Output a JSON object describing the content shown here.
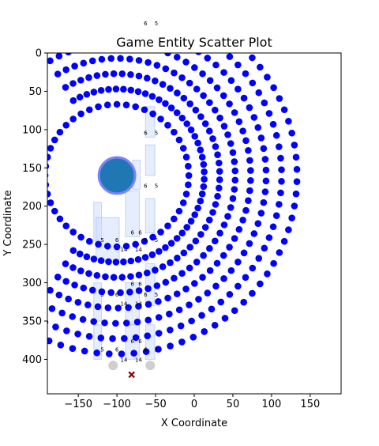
{
  "chart_data": {
    "type": "scatter",
    "title": "Game Entity Scatter Plot",
    "xlabel": "X Coordinate",
    "ylabel": "Y Coordinate",
    "xlim": [
      -190,
      190
    ],
    "ylim": [
      445,
      0
    ],
    "y_axis_inverted": true,
    "grid": false,
    "xticks": [
      -150,
      -100,
      -50,
      0,
      50,
      100,
      150
    ],
    "yticks": [
      0,
      50,
      100,
      150,
      200,
      250,
      300,
      350,
      400
    ],
    "colors": {
      "rings": "#0000ff",
      "player": "#1f77b4",
      "player_outline": "#8080ff",
      "structures": "#c7d7ff",
      "structure_edges": "#6495ed",
      "faded_points": "#cfcfcf",
      "marker_x": "#8b0000"
    },
    "rings": {
      "center": [
        -100,
        160
      ],
      "radii": [
        93,
        113,
        133,
        153,
        173,
        193,
        213,
        233
      ],
      "arc_from_deg": -120,
      "arc_to_deg": 120,
      "points_per_ring": [
        48,
        50,
        52,
        54,
        56,
        58,
        60,
        62
      ]
    },
    "player": {
      "x": -100,
      "y": 160,
      "radius_units": 13
    },
    "structures": [
      {
        "x": -57,
        "y": 70,
        "w": 12,
        "h": 40
      },
      {
        "x": -57,
        "y": 120,
        "w": 12,
        "h": 40
      },
      {
        "x": -75,
        "y": 140,
        "w": 10,
        "h": 38
      },
      {
        "x": -57,
        "y": 190,
        "w": 12,
        "h": 45
      },
      {
        "x": -125,
        "y": 195,
        "w": 10,
        "h": 50
      },
      {
        "x": -80,
        "y": 180,
        "w": 18,
        "h": 60
      },
      {
        "x": -57,
        "y": 275,
        "w": 12,
        "h": 55
      },
      {
        "x": -112,
        "y": 215,
        "w": 30,
        "h": 55
      },
      {
        "x": -125,
        "y": 300,
        "w": 10,
        "h": 50
      },
      {
        "x": -80,
        "y": 300,
        "w": 18,
        "h": 55
      },
      {
        "x": -125,
        "y": 355,
        "w": 10,
        "h": 45
      },
      {
        "x": -80,
        "y": 355,
        "w": 18,
        "h": 45
      },
      {
        "x": -57,
        "y": 355,
        "w": 12,
        "h": 45
      }
    ],
    "annotations": [
      {
        "text": "6",
        "x": -63,
        "y": -36
      },
      {
        "text": "5",
        "x": -49,
        "y": -36
      },
      {
        "text": "6",
        "x": -63,
        "y": 107
      },
      {
        "text": "5",
        "x": -49,
        "y": 107
      },
      {
        "text": "6",
        "x": -63,
        "y": 176
      },
      {
        "text": "5",
        "x": -49,
        "y": 176
      },
      {
        "text": "6",
        "x": -80,
        "y": 237
      },
      {
        "text": "6",
        "x": -70,
        "y": 237
      },
      {
        "text": "5",
        "x": -119,
        "y": 247
      },
      {
        "text": "6",
        "x": -100,
        "y": 247
      },
      {
        "text": "6",
        "x": -63,
        "y": 247
      },
      {
        "text": "5",
        "x": -49,
        "y": 247
      },
      {
        "text": "14",
        "x": -91,
        "y": 259
      },
      {
        "text": "14",
        "x": -72,
        "y": 259
      },
      {
        "text": "6",
        "x": -80,
        "y": 304
      },
      {
        "text": "6",
        "x": -70,
        "y": 304
      },
      {
        "text": "5",
        "x": -119,
        "y": 318
      },
      {
        "text": "6",
        "x": -100,
        "y": 318
      },
      {
        "text": "6",
        "x": -63,
        "y": 318
      },
      {
        "text": "5",
        "x": -49,
        "y": 318
      },
      {
        "text": "14",
        "x": -91,
        "y": 330
      },
      {
        "text": "14",
        "x": -72,
        "y": 330
      },
      {
        "text": "6",
        "x": -80,
        "y": 379
      },
      {
        "text": "6",
        "x": -70,
        "y": 379
      },
      {
        "text": "5",
        "x": -119,
        "y": 390
      },
      {
        "text": "6",
        "x": -100,
        "y": 390
      },
      {
        "text": "6",
        "x": -63,
        "y": 390
      },
      {
        "text": "5",
        "x": -49,
        "y": 390
      },
      {
        "text": "14",
        "x": -91,
        "y": 403
      },
      {
        "text": "14",
        "x": -72,
        "y": 403
      }
    ],
    "faded_points": [
      {
        "x": -105,
        "y": 408
      },
      {
        "x": -57,
        "y": 408
      }
    ],
    "x_marker": {
      "x": -81,
      "y": 420
    }
  }
}
